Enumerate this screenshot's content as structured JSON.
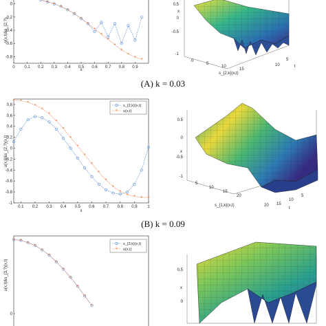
{
  "captions": [
    {
      "text": "(A) k = 0.03"
    },
    {
      "text": "(B) k = 0.09"
    }
  ],
  "colors": {
    "approx": "#5b8fd6",
    "exact": "#e8743b",
    "axis": "#262626"
  },
  "chart_data": [
    {
      "type": "line",
      "panel": "A-left",
      "xlabel": "x",
      "ylabel": "v(x,t)&s_{2,?}",
      "x_ticks": [
        "0",
        "0.1",
        "0.2",
        "0.3",
        "0.4",
        "0.5",
        "0.6",
        "0.7",
        "0.8",
        "0.9"
      ],
      "y_ticks": [
        "-0.8",
        "-0.6",
        "-0.4",
        "-0.2",
        "0"
      ],
      "xlim": [
        0,
        1
      ],
      "ylim": [
        -0.9,
        0.1
      ],
      "x": [
        0.05,
        0.1,
        0.15,
        0.2,
        0.25,
        0.3,
        0.35,
        0.4,
        0.45,
        0.5,
        0.55,
        0.6,
        0.65,
        0.7,
        0.75,
        0.8,
        0.85,
        0.9,
        0.95
      ],
      "series": [
        {
          "values": [
            0.1,
            0.09,
            0.08,
            0.06,
            0.03,
            0.0,
            -0.04,
            -0.09,
            -0.15,
            -0.22,
            -0.3,
            -0.42,
            -0.28,
            -0.5,
            -0.3,
            -0.6,
            -0.33,
            -0.55,
            -0.2
          ]
        },
        {
          "values": [
            0.1,
            0.09,
            0.08,
            0.06,
            0.03,
            0.0,
            -0.04,
            -0.09,
            -0.15,
            -0.22,
            -0.3,
            -0.38,
            -0.46,
            -0.54,
            -0.62,
            -0.7,
            -0.76,
            -0.81,
            -0.84
          ]
        }
      ]
    },
    {
      "type": "line",
      "panel": "B-left",
      "xlabel": "x",
      "ylabel": "u(x,t)&s_{2,?}(x,t)",
      "legend": [
        "s_{2,k}(x,t)",
        "u(x,t)"
      ],
      "legend_position": "top-right",
      "x_ticks": [
        "0.1",
        "0.2",
        "0.3",
        "0.4",
        "0.5",
        "0.6",
        "0.7",
        "0.8",
        "0.9",
        "1"
      ],
      "y_ticks": [
        "-1",
        "-0.8",
        "-0.6",
        "-0.4",
        "-0.2",
        "0",
        "0.2",
        "0.4",
        "0.6",
        "0.8"
      ],
      "xlim": [
        0.05,
        1
      ],
      "ylim": [
        -1,
        0.9
      ],
      "x": [
        0.05,
        0.1,
        0.15,
        0.2,
        0.25,
        0.3,
        0.35,
        0.4,
        0.45,
        0.5,
        0.55,
        0.6,
        0.65,
        0.7,
        0.75,
        0.8,
        0.85,
        0.9,
        0.95,
        1.0
      ],
      "series": [
        {
          "values": [
            0.12,
            0.35,
            0.52,
            0.58,
            0.56,
            0.48,
            0.35,
            0.18,
            0.0,
            -0.18,
            -0.36,
            -0.52,
            -0.66,
            -0.76,
            -0.82,
            -0.84,
            -0.8,
            -0.66,
            -0.4,
            0.02
          ]
        },
        {
          "values": [
            0.88,
            0.87,
            0.84,
            0.79,
            0.72,
            0.63,
            0.5,
            0.36,
            0.2,
            0.04,
            -0.12,
            -0.28,
            -0.44,
            -0.58,
            -0.7,
            -0.79,
            -0.85,
            -0.88,
            -0.9,
            -0.9
          ]
        }
      ]
    },
    {
      "type": "line",
      "panel": "C-left",
      "xlabel": "",
      "ylabel": "u(x,t)&s_{3,?}(x,t)",
      "legend": [
        "s_{3,k}(x,t)",
        "u(x,t)"
      ],
      "legend_position": "top-right",
      "y_ticks": [
        "0"
      ],
      "xlim": [
        0.05,
        1
      ],
      "ylim": [
        -0.25,
        1.05
      ],
      "x": [
        0.05,
        0.1,
        0.15,
        0.2,
        0.25,
        0.3,
        0.35,
        0.4,
        0.45,
        0.5,
        0.55,
        0.6
      ],
      "series": [
        {
          "values": [
            1.0,
            0.99,
            0.96,
            0.92,
            0.86,
            0.79,
            0.7,
            0.6,
            0.49,
            0.37,
            0.24,
            0.11
          ]
        },
        {
          "values": [
            1.0,
            0.99,
            0.96,
            0.92,
            0.86,
            0.79,
            0.7,
            0.6,
            0.49,
            0.37,
            0.24,
            0.11
          ]
        }
      ]
    },
    {
      "type": "surface",
      "panel": "A-right",
      "xlabel": "s_{2,k}(x,t)",
      "ylabel": "t",
      "zlabel": "x",
      "x_ticks": [
        "0",
        "5",
        "10",
        "15"
      ],
      "y_ticks": [
        "5",
        "10"
      ],
      "z_ticks": [
        "-1",
        "-0.5",
        "0",
        "0.5"
      ]
    },
    {
      "type": "surface",
      "panel": "B-right",
      "xlabel": "s_{1,k}(x,t)",
      "ylabel": "t",
      "zlabel": "x",
      "x_ticks": [
        "5",
        "10",
        "15",
        "20"
      ],
      "y_ticks": [
        "5",
        "10",
        "15",
        "20"
      ],
      "z_ticks": [
        "-1",
        "-0.5",
        "0",
        "0.5"
      ]
    },
    {
      "type": "surface",
      "panel": "C-right",
      "zlabel": "x",
      "z_ticks": [
        "0",
        "0.5"
      ]
    }
  ]
}
